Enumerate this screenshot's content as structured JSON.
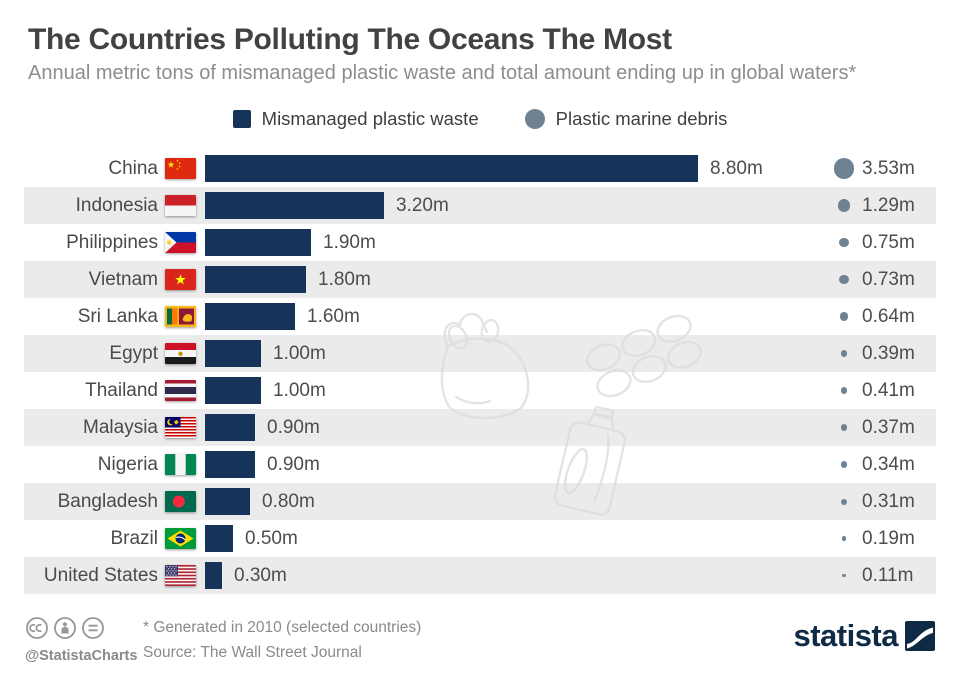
{
  "title": "The Countries Polluting The Oceans The Most",
  "subtitle": "Annual metric tons of mismanaged plastic waste and total amount ending up in global waters*",
  "legend": {
    "bar_label": "Mismanaged plastic waste",
    "circle_label": "Plastic marine debris"
  },
  "colors": {
    "bar": "#16335a",
    "debris_dot": "#6f8294",
    "row_alt": "#ebebeb",
    "logo_navy": "#0e2a44"
  },
  "chart_data": {
    "type": "bar",
    "orientation": "horizontal",
    "title": "The Countries Polluting The Oceans The Most",
    "subtitle": "Annual metric tons of mismanaged plastic waste and total amount ending up in global waters*",
    "unit": "million metric tons",
    "categories": [
      "China",
      "Indonesia",
      "Philippines",
      "Vietnam",
      "Sri Lanka",
      "Egypt",
      "Thailand",
      "Malaysia",
      "Nigeria",
      "Bangladesh",
      "Brazil",
      "United States"
    ],
    "series": [
      {
        "name": "Mismanaged plastic waste",
        "values": [
          8.8,
          3.2,
          1.9,
          1.8,
          1.6,
          1.0,
          1.0,
          0.9,
          0.9,
          0.8,
          0.5,
          0.3
        ],
        "labels": [
          "8.80m",
          "3.20m",
          "1.90m",
          "1.80m",
          "1.60m",
          "1.00m",
          "1.00m",
          "0.90m",
          "0.90m",
          "0.80m",
          "0.50m",
          "0.30m"
        ]
      },
      {
        "name": "Plastic marine debris",
        "values": [
          3.53,
          1.29,
          0.75,
          0.73,
          0.64,
          0.39,
          0.41,
          0.37,
          0.34,
          0.31,
          0.19,
          0.11
        ],
        "labels": [
          "3.53m",
          "1.29m",
          "0.75m",
          "0.73m",
          "0.64m",
          "0.39m",
          "0.41m",
          "0.37m",
          "0.34m",
          "0.31m",
          "0.19m",
          "0.11m"
        ]
      }
    ],
    "legend_position": "top",
    "grid": false,
    "axis_labels": false
  },
  "rows": [
    {
      "country": "China",
      "flag": "cn",
      "waste": 8.8,
      "waste_label": "8.80m",
      "debris": 3.53,
      "debris_label": "3.53m"
    },
    {
      "country": "Indonesia",
      "flag": "id",
      "waste": 3.2,
      "waste_label": "3.20m",
      "debris": 1.29,
      "debris_label": "1.29m"
    },
    {
      "country": "Philippines",
      "flag": "ph",
      "waste": 1.9,
      "waste_label": "1.90m",
      "debris": 0.75,
      "debris_label": "0.75m"
    },
    {
      "country": "Vietnam",
      "flag": "vn",
      "waste": 1.8,
      "waste_label": "1.80m",
      "debris": 0.73,
      "debris_label": "0.73m"
    },
    {
      "country": "Sri Lanka",
      "flag": "lk",
      "waste": 1.6,
      "waste_label": "1.60m",
      "debris": 0.64,
      "debris_label": "0.64m"
    },
    {
      "country": "Egypt",
      "flag": "eg",
      "waste": 1.0,
      "waste_label": "1.00m",
      "debris": 0.39,
      "debris_label": "0.39m"
    },
    {
      "country": "Thailand",
      "flag": "th",
      "waste": 1.0,
      "waste_label": "1.00m",
      "debris": 0.41,
      "debris_label": "0.41m"
    },
    {
      "country": "Malaysia",
      "flag": "my",
      "waste": 0.9,
      "waste_label": "0.90m",
      "debris": 0.37,
      "debris_label": "0.37m"
    },
    {
      "country": "Nigeria",
      "flag": "ng",
      "waste": 0.9,
      "waste_label": "0.90m",
      "debris": 0.34,
      "debris_label": "0.34m"
    },
    {
      "country": "Bangladesh",
      "flag": "bd",
      "waste": 0.8,
      "waste_label": "0.80m",
      "debris": 0.31,
      "debris_label": "0.31m"
    },
    {
      "country": "Brazil",
      "flag": "br",
      "waste": 0.5,
      "waste_label": "0.50m",
      "debris": 0.19,
      "debris_label": "0.19m"
    },
    {
      "country": "United States",
      "flag": "us",
      "waste": 0.3,
      "waste_label": "0.30m",
      "debris": 0.11,
      "debris_label": "0.11m"
    }
  ],
  "footer": {
    "handle": "@StatistaCharts",
    "note": "* Generated in 2010 (selected countries)",
    "source": "Source: The Wall Street Journal",
    "logo_text": "statista"
  }
}
